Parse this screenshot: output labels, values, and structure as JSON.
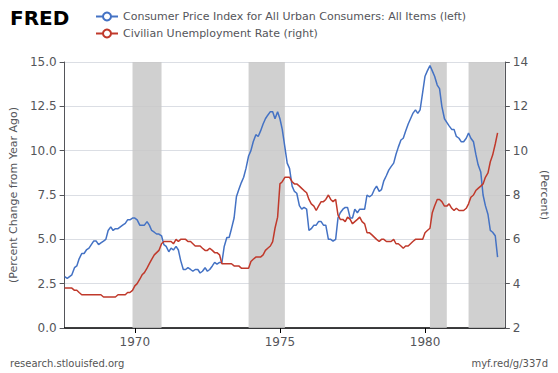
{
  "chart_data": {
    "type": "line",
    "annotations": [
      "FRED",
      "research.stlouisfed.org",
      "myf.red/g/337d"
    ],
    "ylabel": "(Percent Change from Year Ago)",
    "y2label": "(Percent)",
    "legend": "top",
    "grid": true,
    "xlim": [
      1967.58,
      1982.75
    ],
    "xticks": [
      1970,
      1975,
      1980
    ],
    "ylim": [
      0,
      15
    ],
    "yticks": [
      {
        "value": 0,
        "label": "0.0"
      },
      2.5,
      {
        "value": 5,
        "label": "5.0"
      },
      7.5,
      {
        "value": 10,
        "label": "10.0"
      },
      12.5,
      {
        "value": 15,
        "label": "15.0"
      }
    ],
    "y2lim": [
      2,
      14
    ],
    "y2ticks": [
      2,
      4,
      6,
      8,
      10,
      12,
      14
    ],
    "recession_bands": [
      [
        1969.92,
        1970.92
      ],
      [
        1973.92,
        1975.17
      ],
      [
        1980.17,
        1980.75
      ],
      [
        1981.5,
        1982.75
      ]
    ],
    "x": [
      1967.58,
      1967.67,
      1967.75,
      1967.83,
      1967.92,
      1968.0,
      1968.08,
      1968.17,
      1968.25,
      1968.33,
      1968.42,
      1968.5,
      1968.58,
      1968.67,
      1968.75,
      1968.83,
      1968.92,
      1969.0,
      1969.08,
      1969.17,
      1969.25,
      1969.33,
      1969.42,
      1969.5,
      1969.58,
      1969.67,
      1969.75,
      1969.83,
      1969.92,
      1970.0,
      1970.08,
      1970.17,
      1970.25,
      1970.33,
      1970.42,
      1970.5,
      1970.58,
      1970.67,
      1970.75,
      1970.83,
      1970.92,
      1971.0,
      1971.08,
      1971.17,
      1971.25,
      1971.33,
      1971.42,
      1971.5,
      1971.58,
      1971.67,
      1971.75,
      1971.83,
      1971.92,
      1972.0,
      1972.08,
      1972.17,
      1972.25,
      1972.33,
      1972.42,
      1972.5,
      1972.58,
      1972.67,
      1972.75,
      1972.83,
      1972.92,
      1973.0,
      1973.08,
      1973.17,
      1973.25,
      1973.33,
      1973.42,
      1973.5,
      1973.58,
      1973.67,
      1973.75,
      1973.83,
      1973.92,
      1974.0,
      1974.08,
      1974.17,
      1974.25,
      1974.33,
      1974.42,
      1974.5,
      1974.58,
      1974.67,
      1974.75,
      1974.83,
      1974.92,
      1975.0,
      1975.08,
      1975.17,
      1975.25,
      1975.33,
      1975.42,
      1975.5,
      1975.58,
      1975.67,
      1975.75,
      1975.83,
      1975.92,
      1976.0,
      1976.08,
      1976.17,
      1976.25,
      1976.33,
      1976.42,
      1976.5,
      1976.58,
      1976.67,
      1976.75,
      1976.83,
      1976.92,
      1977.0,
      1977.08,
      1977.17,
      1977.25,
      1977.33,
      1977.42,
      1977.5,
      1977.58,
      1977.67,
      1977.75,
      1977.83,
      1977.92,
      1978.0,
      1978.08,
      1978.17,
      1978.25,
      1978.33,
      1978.42,
      1978.5,
      1978.58,
      1978.67,
      1978.75,
      1978.83,
      1978.92,
      1979.0,
      1979.08,
      1979.17,
      1979.25,
      1979.33,
      1979.42,
      1979.5,
      1979.58,
      1979.67,
      1979.75,
      1979.83,
      1979.92,
      1980.0,
      1980.08,
      1980.17,
      1980.25,
      1980.33,
      1980.42,
      1980.5,
      1980.58,
      1980.67,
      1980.75,
      1980.83,
      1980.92,
      1981.0,
      1981.08,
      1981.17,
      1981.25,
      1981.33,
      1981.42,
      1981.5,
      1981.58,
      1981.67,
      1981.75,
      1981.83,
      1981.92,
      1982.0,
      1982.08,
      1982.17,
      1982.25,
      1982.33,
      1982.42,
      1982.5
    ],
    "series": [
      {
        "name": "Consumer Price Index for All Urban Consumers: All Items (left)",
        "color": "#4472c4",
        "values": [
          2.9,
          2.8,
          2.9,
          3.0,
          3.4,
          3.5,
          3.9,
          4.2,
          4.2,
          4.4,
          4.5,
          4.7,
          4.9,
          4.9,
          4.7,
          4.8,
          4.9,
          5.0,
          5.5,
          5.7,
          5.5,
          5.6,
          5.6,
          5.7,
          5.8,
          5.9,
          6.1,
          6.1,
          6.2,
          6.2,
          6.1,
          5.8,
          5.8,
          5.8,
          6.0,
          5.8,
          5.5,
          5.4,
          5.3,
          5.3,
          5.2,
          4.7,
          4.6,
          4.3,
          4.5,
          4.4,
          4.6,
          4.4,
          3.8,
          3.3,
          3.3,
          3.4,
          3.3,
          3.2,
          3.3,
          3.3,
          3.1,
          3.2,
          3.4,
          3.2,
          3.3,
          3.5,
          3.7,
          3.6,
          3.7,
          3.7,
          4.6,
          5.1,
          5.1,
          5.6,
          6.2,
          7.4,
          7.8,
          8.2,
          8.5,
          9.0,
          9.7,
          10.0,
          10.5,
          10.9,
          10.8,
          11.1,
          11.5,
          11.8,
          12.0,
          12.2,
          12.2,
          11.8,
          12.2,
          11.8,
          11.2,
          10.2,
          9.3,
          9.0,
          8.0,
          7.7,
          7.6,
          6.9,
          6.7,
          6.8,
          6.7,
          5.5,
          5.6,
          5.8,
          5.8,
          6.0,
          6.0,
          5.8,
          5.8,
          5.0,
          5.0,
          4.9,
          5.0,
          6.2,
          6.5,
          6.7,
          6.8,
          6.8,
          6.2,
          6.2,
          6.7,
          6.5,
          6.7,
          6.7,
          6.7,
          7.5,
          7.4,
          7.5,
          7.8,
          8.0,
          7.7,
          7.8,
          8.3,
          8.6,
          8.9,
          9.1,
          9.3,
          9.8,
          10.2,
          10.6,
          10.7,
          11.1,
          11.5,
          11.8,
          12.1,
          12.3,
          12.1,
          12.3,
          13.3,
          14.2,
          14.5,
          14.8,
          14.5,
          14.2,
          13.7,
          13.5,
          12.5,
          11.8,
          11.6,
          11.4,
          11.2,
          11.2,
          10.8,
          10.7,
          10.5,
          10.5,
          10.7,
          11.0,
          10.7,
          10.5,
          9.8,
          9.2,
          8.8,
          7.5,
          6.9,
          6.4,
          5.5,
          5.4,
          5.2,
          4.0
        ]
      },
      {
        "name": "Civilian Unemployment Rate (right)",
        "color": "#c0392b",
        "axis": "y2",
        "values": [
          3.8,
          3.8,
          3.8,
          3.8,
          3.7,
          3.7,
          3.6,
          3.5,
          3.5,
          3.5,
          3.5,
          3.5,
          3.5,
          3.5,
          3.5,
          3.5,
          3.4,
          3.4,
          3.4,
          3.4,
          3.4,
          3.4,
          3.5,
          3.5,
          3.5,
          3.5,
          3.6,
          3.6,
          3.7,
          3.9,
          4.0,
          4.2,
          4.4,
          4.5,
          4.7,
          4.9,
          5.1,
          5.3,
          5.4,
          5.5,
          5.8,
          5.9,
          5.9,
          5.9,
          5.9,
          5.8,
          6.0,
          5.9,
          6.0,
          6.0,
          6.0,
          5.9,
          5.9,
          5.8,
          5.7,
          5.7,
          5.7,
          5.6,
          5.5,
          5.5,
          5.6,
          5.5,
          5.4,
          5.4,
          5.3,
          4.9,
          4.9,
          4.9,
          4.9,
          4.9,
          4.8,
          4.8,
          4.8,
          4.7,
          4.7,
          4.7,
          4.7,
          5.0,
          5.1,
          5.2,
          5.2,
          5.2,
          5.3,
          5.5,
          5.6,
          5.7,
          5.9,
          6.5,
          7.0,
          8.5,
          8.6,
          8.8,
          8.8,
          8.8,
          8.6,
          8.5,
          8.5,
          8.4,
          8.3,
          8.2,
          8.1,
          7.8,
          7.6,
          7.5,
          7.3,
          7.5,
          7.7,
          7.7,
          7.8,
          8.0,
          7.8,
          7.7,
          7.8,
          7.1,
          6.9,
          6.9,
          6.8,
          7.0,
          6.9,
          6.7,
          6.8,
          6.9,
          7.0,
          6.8,
          6.7,
          6.3,
          6.3,
          6.2,
          6.1,
          6.0,
          5.9,
          6.0,
          6.0,
          5.9,
          5.9,
          5.9,
          6.0,
          5.8,
          5.8,
          5.7,
          5.6,
          5.7,
          5.7,
          5.8,
          5.9,
          6.0,
          6.0,
          6.0,
          6.0,
          6.3,
          6.4,
          6.5,
          7.2,
          7.5,
          7.8,
          7.8,
          7.7,
          7.5,
          7.5,
          7.6,
          7.4,
          7.3,
          7.4,
          7.3,
          7.3,
          7.3,
          7.4,
          7.6,
          7.9,
          8.0,
          8.2,
          8.3,
          8.4,
          8.5,
          8.8,
          9.0,
          9.5,
          9.8,
          10.3,
          10.8
        ]
      }
    ]
  }
}
